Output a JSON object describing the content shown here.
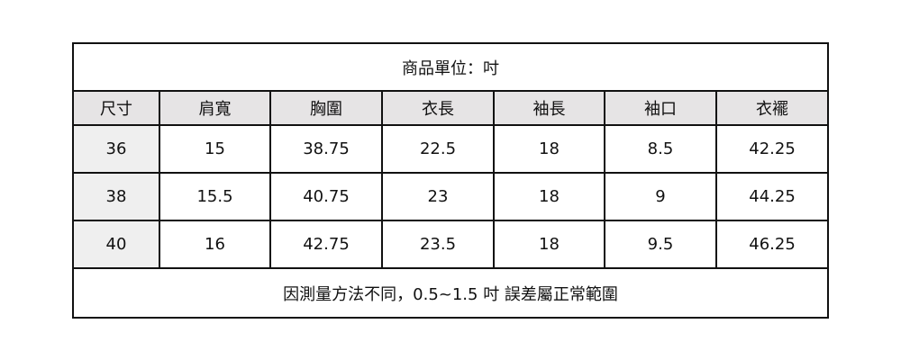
{
  "title": "商品單位：吋",
  "headers": [
    "尺寸",
    "肩寬",
    "胸圍",
    "衣長",
    "袖長",
    "袖口",
    "衣襬"
  ],
  "rows": [
    [
      "36",
      "15",
      "38.75",
      "22.5",
      "18",
      "8.5",
      "42.25"
    ],
    [
      "38",
      "15.5",
      "40.75",
      "23",
      "18",
      "9",
      "44.25"
    ],
    [
      "40",
      "16",
      "42.75",
      "23.5",
      "18",
      "9.5",
      "46.25"
    ]
  ],
  "footer": "因測量方法不同，0.5~1.5 吋 誤差屬正常範圍",
  "colors": {
    "header_bg": "#e6e4e5",
    "first_col_bg": "#efefef",
    "border": "#111111"
  }
}
